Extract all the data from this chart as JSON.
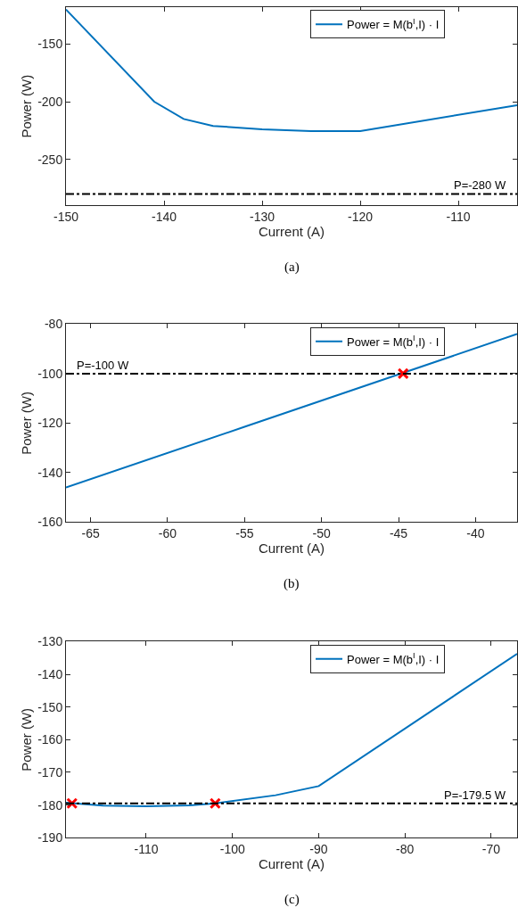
{
  "chart_data": [
    {
      "type": "line",
      "xlabel": "Current (A)",
      "ylabel": "Power (W)",
      "xlim": [
        -150,
        -104
      ],
      "xticks": [
        -150,
        -140,
        -130,
        -120,
        -110
      ],
      "ylim": [
        -290,
        -118
      ],
      "yticks": [
        -150,
        -200,
        -250
      ],
      "legend": "top right",
      "series": [
        {
          "name": "Power = M(b$^{I}$,I) · I",
          "color": "#0072bd",
          "x": [
            -150,
            -141,
            -138,
            -135,
            -130,
            -125,
            -120,
            -104
          ],
          "values": [
            -120,
            -200,
            -215,
            -221,
            -224,
            -225.5,
            -225.5,
            -203
          ]
        }
      ],
      "ref_lines": [
        {
          "axis": "y",
          "value": -280,
          "label": "P=-280 W",
          "color": "#000000",
          "line_style": "dashdot"
        }
      ],
      "annotations": [
        "(a)"
      ]
    },
    {
      "type": "line",
      "xlabel": "Current (A)",
      "ylabel": "Power (W)",
      "xlim": [
        -66.6,
        -37.3
      ],
      "xticks": [
        -65,
        -60,
        -55,
        -50,
        -45,
        -40
      ],
      "ylim": [
        -160,
        -80
      ],
      "yticks": [
        -80,
        -100,
        -120,
        -140,
        -160
      ],
      "legend": "top right",
      "series": [
        {
          "name": "Power = M(b$^{I}$,I) · I",
          "color": "#0072bd",
          "x": [
            -66.6,
            -55,
            -37.3
          ],
          "values": [
            -146,
            -121.5,
            -84
          ]
        },
        {
          "type": "scatter",
          "marker": "cross",
          "color": "#ff0000",
          "x": [
            -44.7
          ],
          "values": [
            -100
          ]
        }
      ],
      "ref_lines": [
        {
          "axis": "y",
          "value": -100,
          "label": "P=-100 W",
          "color": "#000000",
          "line_style": "dashdot"
        }
      ],
      "annotations": [
        "(b)"
      ]
    },
    {
      "type": "line",
      "xlabel": "Current (A)",
      "ylabel": "Power (W)",
      "xlim": [
        -119.3,
        -67
      ],
      "xticks": [
        -110,
        -100,
        -90,
        -80,
        -70
      ],
      "ylim": [
        -190,
        -130
      ],
      "yticks": [
        -130,
        -140,
        -150,
        -160,
        -170,
        -180,
        -190
      ],
      "legend": "top right",
      "series": [
        {
          "name": "Power = M(b$^{I}$,I) · I",
          "color": "#0072bd",
          "x": [
            -119.3,
            -115,
            -110,
            -105,
            -102,
            -95,
            -90,
            -67
          ],
          "values": [
            -179.3,
            -180.2,
            -180.4,
            -180.1,
            -179.5,
            -177,
            -174.2,
            -133.7
          ]
        },
        {
          "type": "scatter",
          "marker": "cross",
          "color": "#ff0000",
          "x": [
            -118.6,
            -102
          ],
          "values": [
            -179.5,
            -179.5
          ]
        }
      ],
      "ref_lines": [
        {
          "axis": "y",
          "value": -179.5,
          "label": "P=-179.5 W",
          "color": "#000000",
          "line_style": "dashdot"
        }
      ],
      "annotations": [
        "(c)"
      ]
    }
  ]
}
